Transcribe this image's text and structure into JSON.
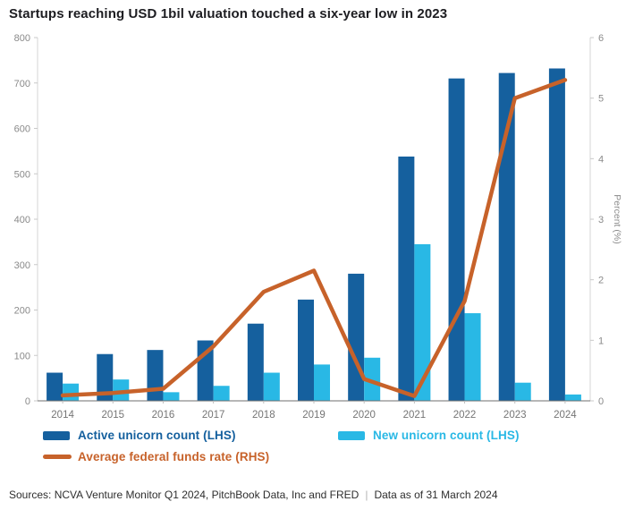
{
  "title": "Startups reaching USD 1bil valuation touched a six-year low in 2023",
  "chart_data": {
    "type": "bar",
    "categories": [
      "2014",
      "2015",
      "2016",
      "2017",
      "2018",
      "2019",
      "2020",
      "2021",
      "2022",
      "2023",
      "2024"
    ],
    "series": [
      {
        "name": "Active unicorn count (LHS)",
        "type": "bar",
        "axis": "left",
        "color": "#15609E",
        "values": [
          62,
          103,
          112,
          133,
          170,
          223,
          280,
          538,
          710,
          722,
          732
        ]
      },
      {
        "name": "New unicorn count  (LHS)",
        "type": "bar",
        "axis": "left",
        "color": "#29B8E5",
        "values": [
          38,
          47,
          19,
          33,
          62,
          80,
          95,
          345,
          193,
          40,
          14
        ]
      },
      {
        "name": "Average federal funds rate (RHS)",
        "type": "line",
        "axis": "right",
        "color": "#C7622A",
        "values": [
          0.09,
          0.13,
          0.2,
          0.9,
          1.8,
          2.15,
          0.36,
          0.08,
          1.65,
          5.0,
          5.3
        ]
      }
    ],
    "left_axis": {
      "min": 0,
      "max": 800,
      "ticks": [
        "0",
        "100",
        "200",
        "300",
        "400",
        "500",
        "600",
        "700",
        "800"
      ]
    },
    "right_axis": {
      "min": 0,
      "max": 6,
      "label": "Percent (%)",
      "ticks": [
        "0",
        "1",
        "2",
        "3",
        "4",
        "5",
        "6"
      ]
    },
    "grid": false,
    "legend_position": "bottom"
  },
  "footer": {
    "sources": "Sources: NCVA Venture Monitor Q1 2024, PitchBook Data, Inc and FRED",
    "separator": "|",
    "data_as_of": "Data as of 31 March 2024"
  }
}
